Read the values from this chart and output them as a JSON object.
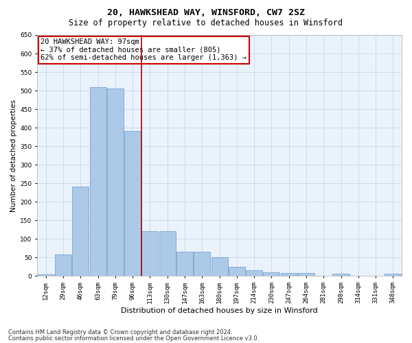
{
  "title1": "20, HAWKSHEAD WAY, WINSFORD, CW7 2SZ",
  "title2": "Size of property relative to detached houses in Winsford",
  "xlabel": "Distribution of detached houses by size in Winsford",
  "ylabel": "Number of detached properties",
  "footnote1": "Contains HM Land Registry data © Crown copyright and database right 2024.",
  "footnote2": "Contains public sector information licensed under the Open Government Licence v3.0.",
  "annotation_line1": "20 HAWKSHEAD WAY: 97sqm",
  "annotation_line2": "← 37% of detached houses are smaller (805)",
  "annotation_line3": "62% of semi-detached houses are larger (1,363) →",
  "bar_color": "#adc9e8",
  "bar_edge_color": "#6699cc",
  "grid_color": "#c5d8ee",
  "vline_color": "#aa0000",
  "annotation_box_color": "#cc0000",
  "background_color": "#eaf2fb",
  "categories": [
    "12sqm",
    "29sqm",
    "46sqm",
    "63sqm",
    "79sqm",
    "96sqm",
    "113sqm",
    "130sqm",
    "147sqm",
    "163sqm",
    "180sqm",
    "197sqm",
    "214sqm",
    "230sqm",
    "247sqm",
    "264sqm",
    "281sqm",
    "298sqm",
    "314sqm",
    "331sqm",
    "348sqm"
  ],
  "values": [
    3,
    58,
    240,
    510,
    505,
    390,
    120,
    120,
    65,
    65,
    50,
    25,
    15,
    10,
    7,
    7,
    0,
    5,
    0,
    0,
    5
  ],
  "ylim": [
    0,
    650
  ],
  "yticks": [
    0,
    50,
    100,
    150,
    200,
    250,
    300,
    350,
    400,
    450,
    500,
    550,
    600,
    650
  ],
  "vline_bar_index": 5,
  "title1_fontsize": 9.5,
  "title2_fontsize": 8.5,
  "xlabel_fontsize": 8,
  "ylabel_fontsize": 7.5,
  "tick_fontsize": 6.5,
  "annot_fontsize": 7.5,
  "footnote_fontsize": 6
}
